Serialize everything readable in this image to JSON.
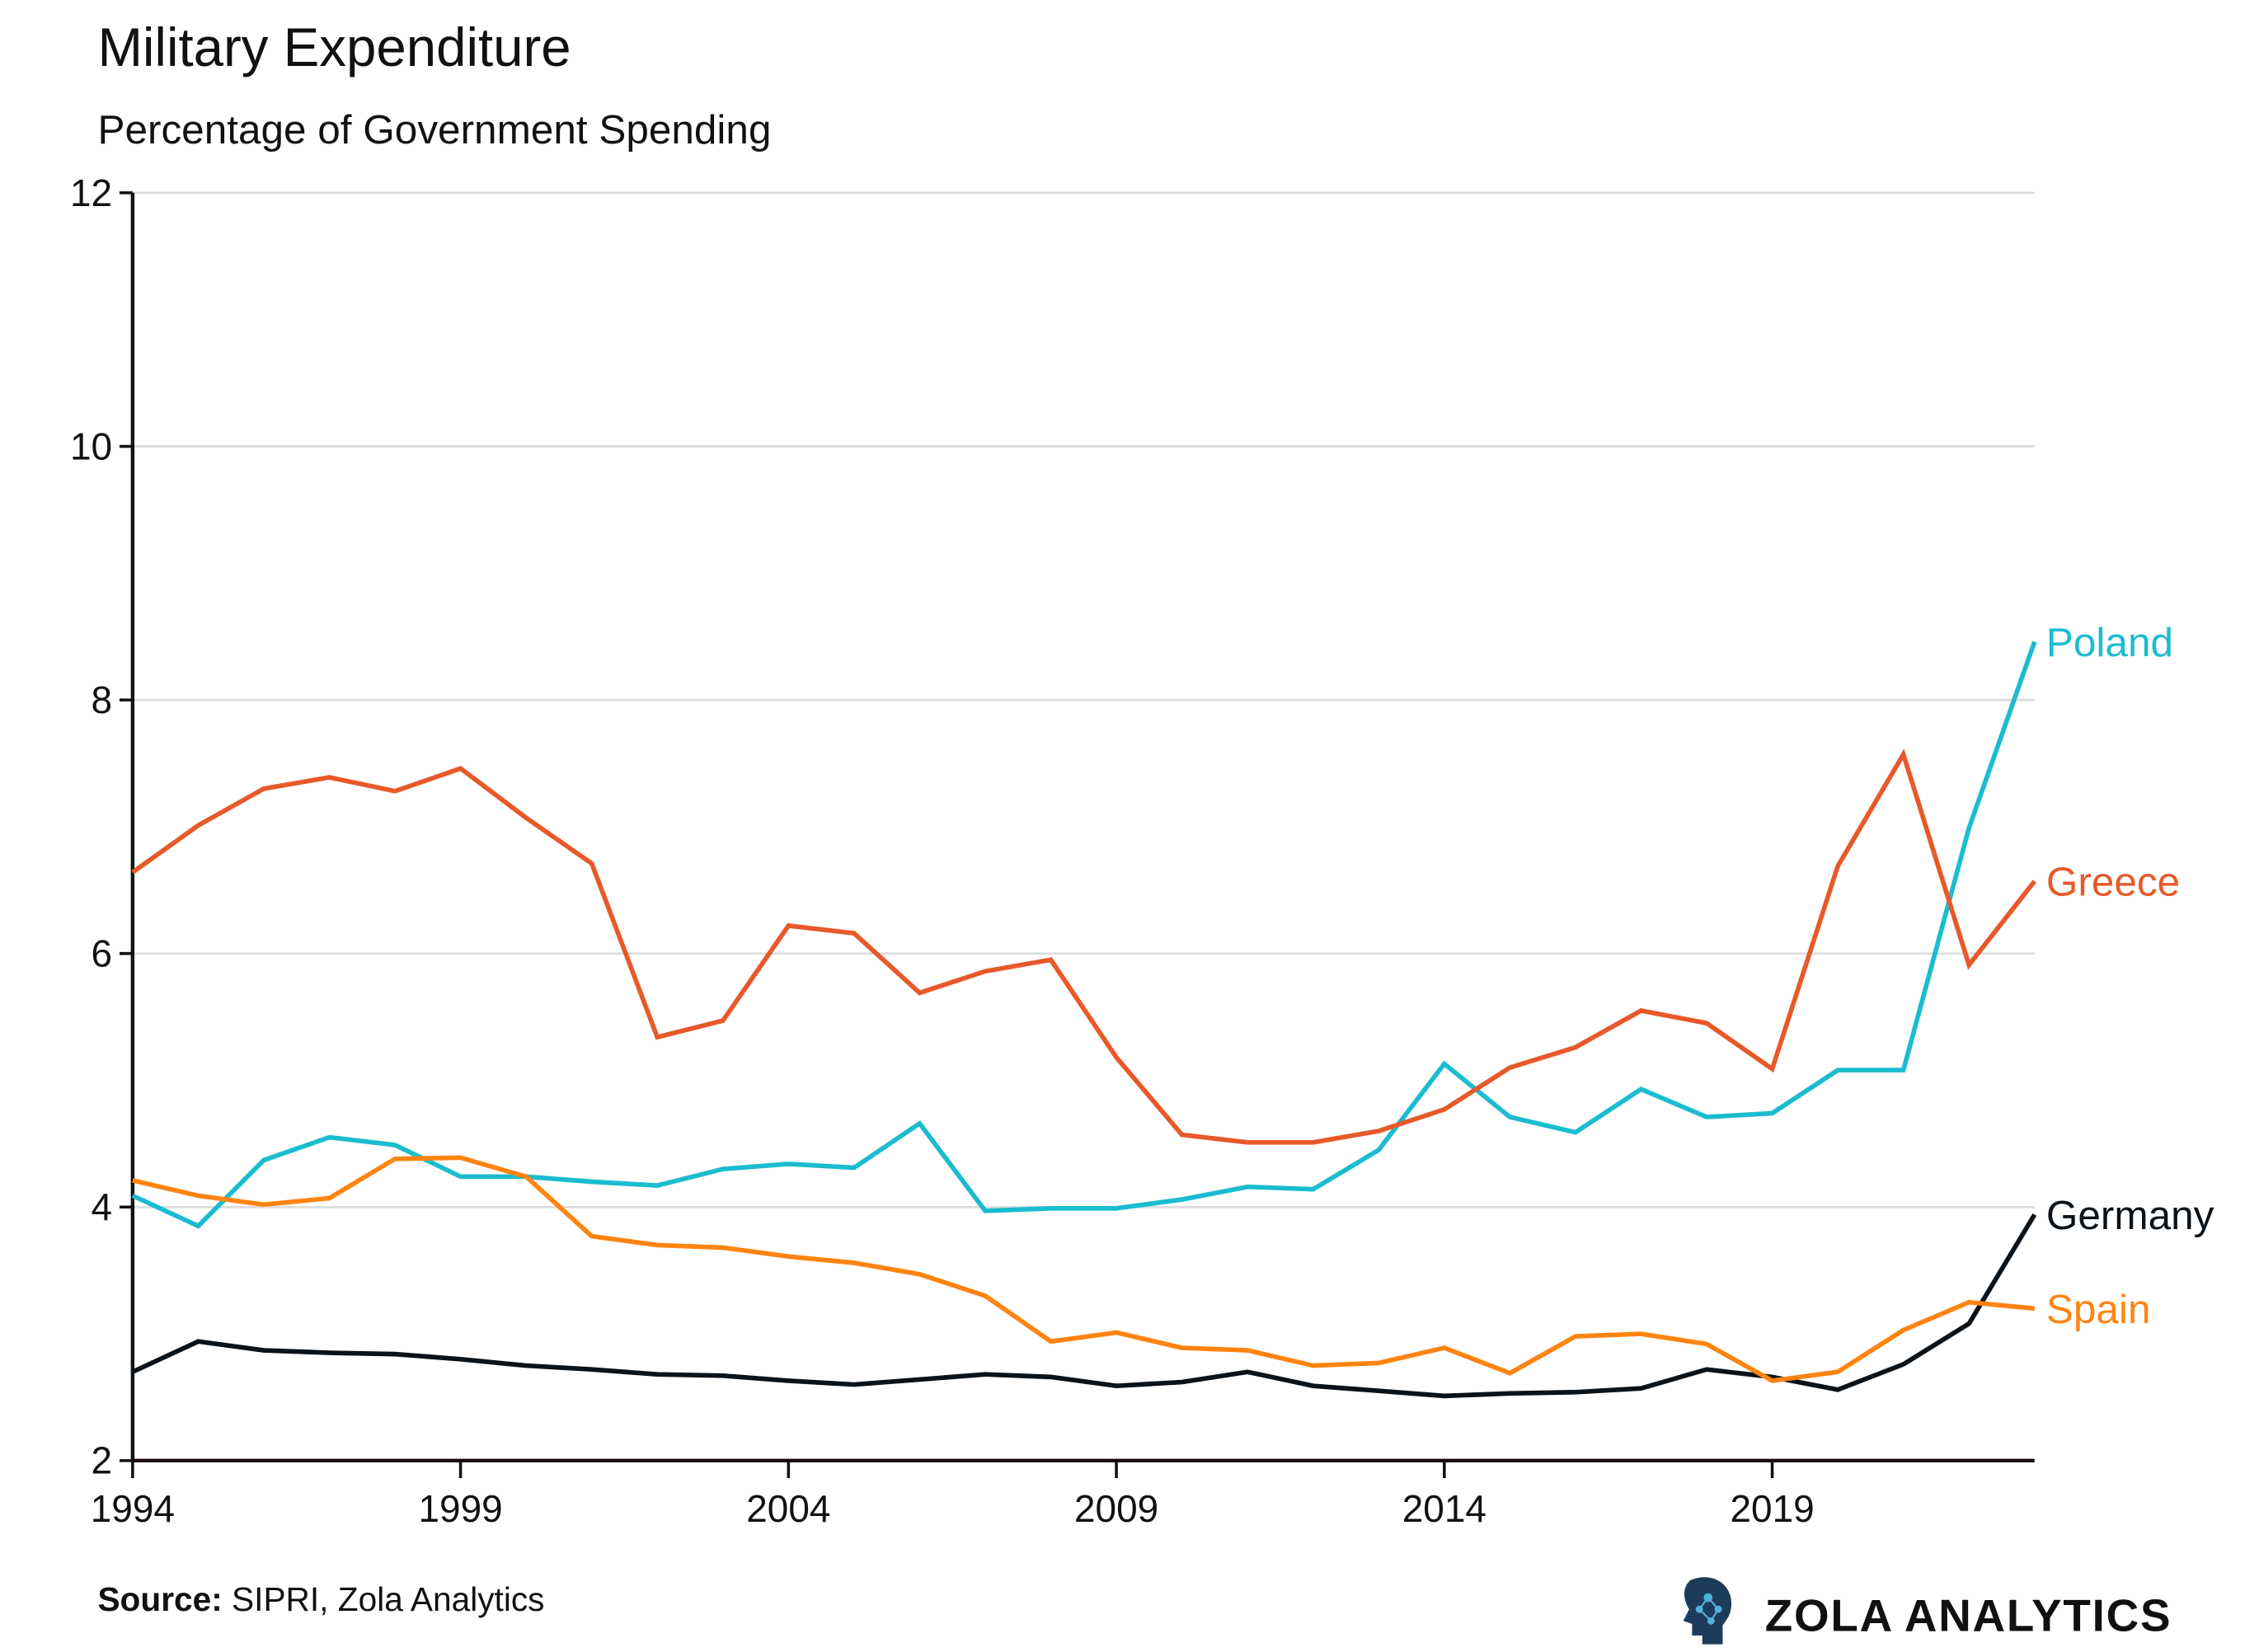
{
  "chart_data": {
    "type": "line",
    "title": "Military Expenditure",
    "subtitle": "Percentage of Government Spending",
    "xlabel": "",
    "ylabel": "",
    "xlim": [
      1994,
      2023
    ],
    "ylim": [
      2,
      12
    ],
    "x_ticks": [
      1994,
      1999,
      2004,
      2009,
      2014,
      2019
    ],
    "y_ticks": [
      2,
      4,
      6,
      8,
      10,
      12
    ],
    "grid": "horizontal",
    "legend": "direct labels at line ends",
    "x": [
      1994,
      1995,
      1996,
      1997,
      1998,
      1999,
      2000,
      2001,
      2002,
      2003,
      2004,
      2005,
      2006,
      2007,
      2008,
      2009,
      2010,
      2011,
      2012,
      2013,
      2014,
      2015,
      2016,
      2017,
      2018,
      2019,
      2020,
      2021,
      2022,
      2023
    ],
    "series": [
      {
        "name": "Poland",
        "color": "#1bbccf",
        "values": [
          4.09,
          3.85,
          4.37,
          4.55,
          4.49,
          4.24,
          4.24,
          4.2,
          4.17,
          4.3,
          4.34,
          4.31,
          4.66,
          3.97,
          3.99,
          3.99,
          4.06,
          4.16,
          4.14,
          4.45,
          5.13,
          4.71,
          4.59,
          4.93,
          4.71,
          4.74,
          5.08,
          5.08,
          6.99,
          8.46
        ]
      },
      {
        "name": "Greece",
        "color": "#e8592a",
        "values": [
          6.64,
          7.01,
          7.3,
          7.39,
          7.28,
          7.46,
          7.07,
          6.71,
          5.34,
          5.47,
          6.22,
          6.16,
          5.69,
          5.86,
          5.95,
          5.18,
          4.57,
          4.51,
          4.51,
          4.6,
          4.77,
          5.1,
          5.26,
          5.55,
          5.45,
          5.09,
          6.69,
          7.57,
          5.91,
          6.57
        ]
      },
      {
        "name": "Germany",
        "color": "#0b1218",
        "values": [
          2.7,
          2.94,
          2.87,
          2.85,
          2.84,
          2.8,
          2.75,
          2.72,
          2.68,
          2.67,
          2.63,
          2.6,
          2.64,
          2.68,
          2.66,
          2.59,
          2.62,
          2.7,
          2.59,
          2.55,
          2.51,
          2.53,
          2.54,
          2.57,
          2.72,
          2.66,
          2.56,
          2.76,
          3.08,
          3.94
        ]
      },
      {
        "name": "Spain",
        "color": "#ff8411",
        "values": [
          4.21,
          4.09,
          4.02,
          4.07,
          4.38,
          4.39,
          4.24,
          3.77,
          3.7,
          3.68,
          3.61,
          3.56,
          3.47,
          3.3,
          2.94,
          3.01,
          2.89,
          2.87,
          2.75,
          2.77,
          2.89,
          2.69,
          2.98,
          3.0,
          2.92,
          2.63,
          2.7,
          3.03,
          3.25,
          3.2
        ]
      }
    ]
  },
  "footer": {
    "source_label": "Source:",
    "source_text": " SIPRI, Zola Analytics",
    "brand": "ZOLA ANALYTICS",
    "brand_icon": "head-circuit-icon"
  }
}
